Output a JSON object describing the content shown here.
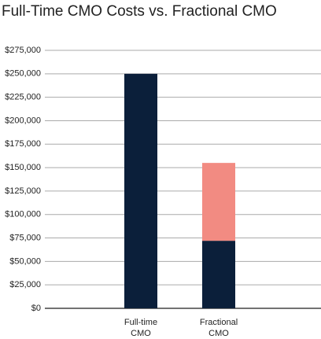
{
  "chart_data": {
    "type": "stacked-bar",
    "title": "Full-Time CMO Costs vs. Fractional CMO",
    "categories": [
      "Full-time CMO",
      "Fractional CMO"
    ],
    "series": [
      {
        "color": "#0b1f3a",
        "values": [
          250000,
          72000
        ]
      },
      {
        "color": "#f28b82",
        "values": [
          null,
          83000
        ]
      }
    ],
    "ylim": [
      0,
      275000
    ],
    "yticks": [
      {
        "value": 0,
        "label": "$0"
      },
      {
        "value": 25000,
        "label": "$25,000"
      },
      {
        "value": 50000,
        "label": "$50,000"
      },
      {
        "value": 75000,
        "label": "$75,000"
      },
      {
        "value": 100000,
        "label": "$100,000"
      },
      {
        "value": 125000,
        "label": "$125,000"
      },
      {
        "value": 150000,
        "label": "$150,000"
      },
      {
        "value": 175000,
        "label": "$175,000"
      },
      {
        "value": 200000,
        "label": "$200,000"
      },
      {
        "value": 225000,
        "label": "$225,000"
      },
      {
        "value": 250000,
        "label": "$250,000"
      },
      {
        "value": 275000,
        "label": "$275,000"
      }
    ],
    "grid": true
  }
}
